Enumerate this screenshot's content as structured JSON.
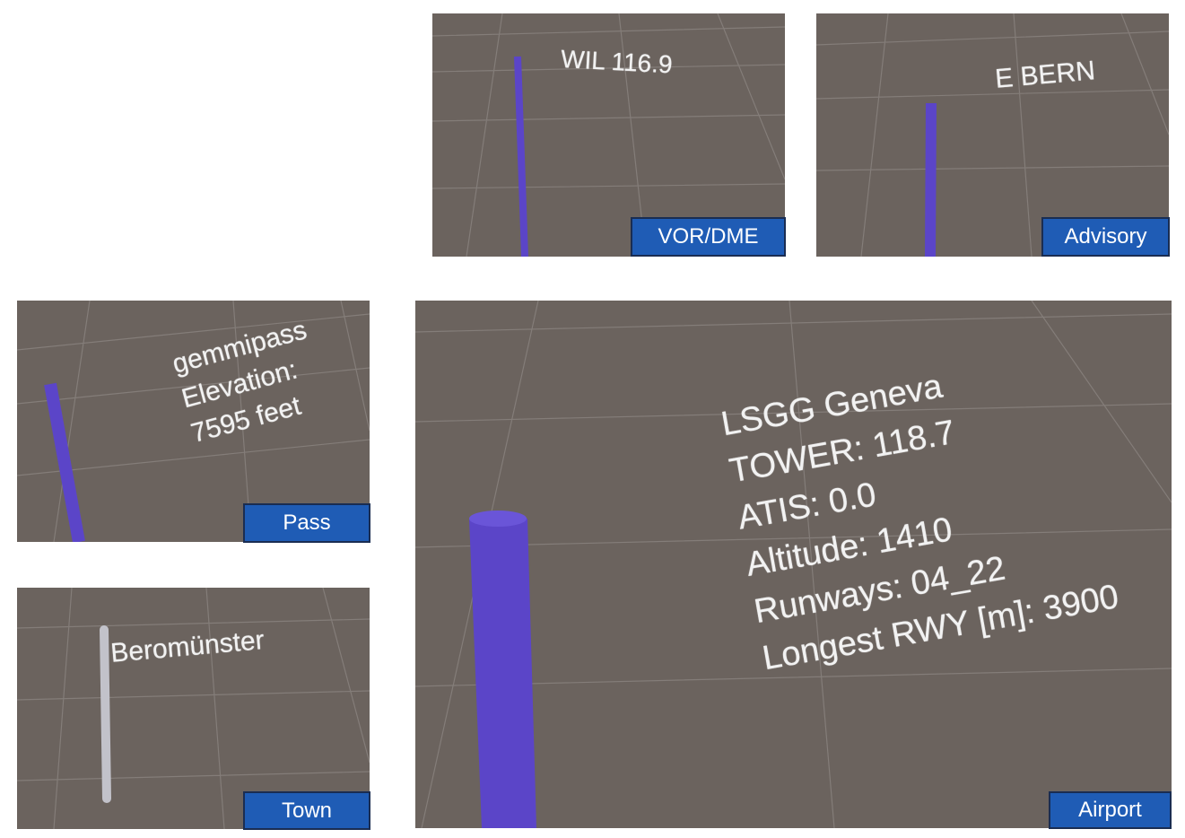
{
  "panels": [
    {
      "label": "VOR/DME",
      "text": [
        "WIL 116.9"
      ]
    },
    {
      "label": "Advisory",
      "text": [
        "E BERN"
      ]
    },
    {
      "label": "Pass",
      "text": [
        "gemmipass",
        "Elevation:",
        "7595 feet"
      ]
    },
    {
      "label": "Town",
      "text": [
        "Beromünster"
      ]
    },
    {
      "label": "Airport",
      "text": [
        "LSGG Geneva",
        "TOWER: 118.7",
        "ATIS: 0.0",
        "Altitude: 1410",
        "Runways: 04_22",
        "Longest RWY [m]: 3900"
      ]
    }
  ]
}
